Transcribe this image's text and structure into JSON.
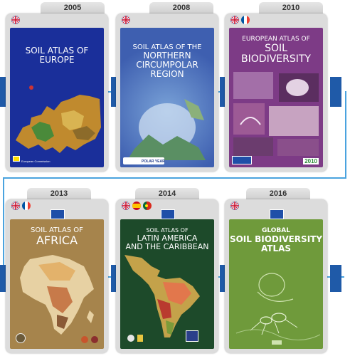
{
  "rows": [
    {
      "books": [
        {
          "year": "2005",
          "flags": [
            "uk-flag"
          ],
          "title_lines": [
            "SOIL ATLAS OF",
            "EUROPE"
          ],
          "footer": "European Commission"
        },
        {
          "year": "2008",
          "flags": [
            "uk-flag"
          ],
          "title_lines": [
            "SOIL ATLAS OF THE",
            "NORTHERN",
            "CIRCUMPOLAR",
            "REGION"
          ],
          "footer": "POLAR YEAR"
        },
        {
          "year": "2010",
          "flags": [
            "uk-flag",
            "fr-flag"
          ],
          "title_lines": [
            "EUROPEAN ATLAS OF",
            "SOIL",
            "BIODIVERSITY"
          ],
          "footer": "2010"
        }
      ]
    },
    {
      "books": [
        {
          "year": "2013",
          "flags": [
            "uk-flag",
            "fr-flag"
          ],
          "title_lines": [
            "SOIL ATLAS OF",
            "AFRICA"
          ]
        },
        {
          "year": "2014",
          "flags": [
            "uk-flag",
            "es-flag",
            "pt-flag"
          ],
          "title_lines": [
            "SOIL ATLAS OF",
            "LATIN AMERICA",
            "AND THE CARIBBEAN"
          ]
        },
        {
          "year": "2016",
          "flags": [
            "uk-flag"
          ],
          "title_lines": [
            "GLOBAL",
            "SOIL BIODIVERSITY",
            "ATLAS"
          ]
        }
      ]
    }
  ],
  "colors": {
    "connector": "#4aa3df",
    "block": "#1f5aa8",
    "europe_cover": "#1a2f9a",
    "circumpolar_cover": "#3e5fb0",
    "biodiversity_cover": "#7d3b86",
    "africa_cover": "#a6844c",
    "latam_cover": "#1d4a2a",
    "global_cover": "#6f9a3b"
  }
}
